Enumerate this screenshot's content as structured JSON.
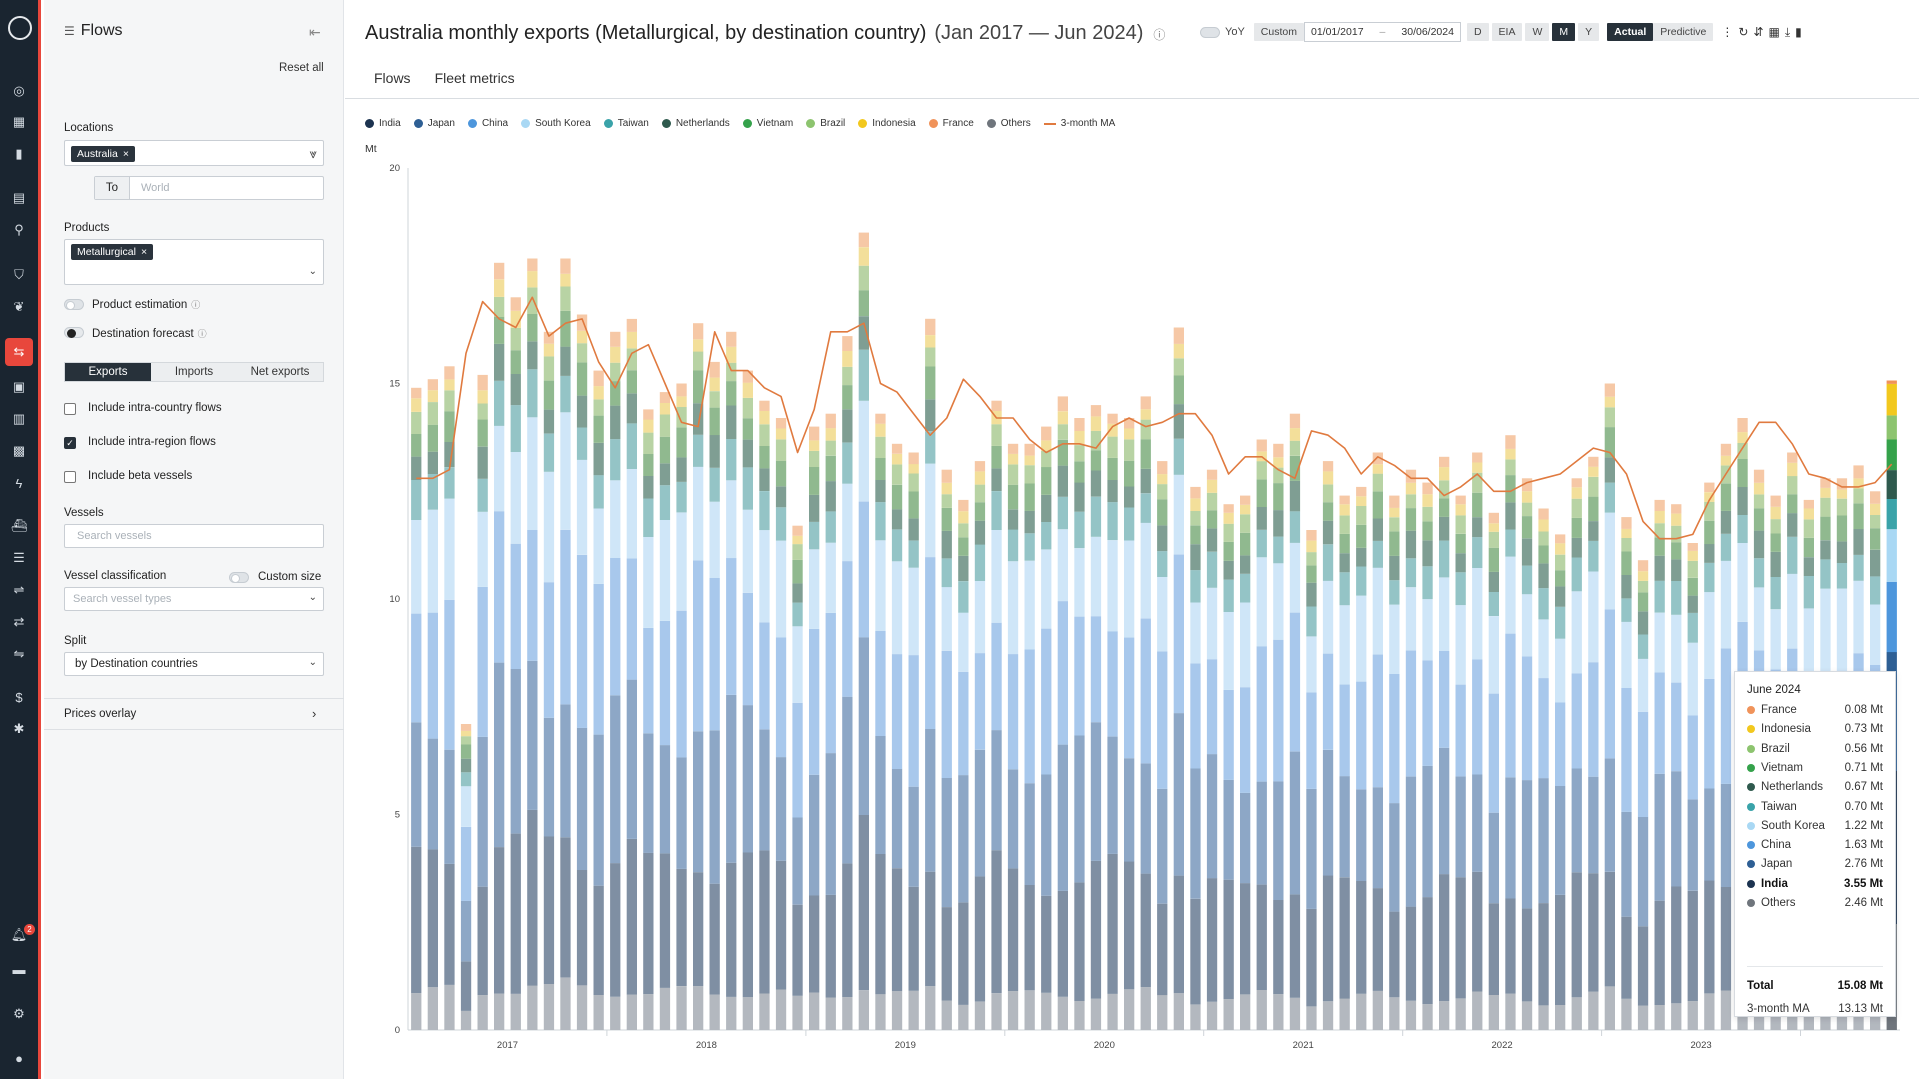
{
  "sidebar": {
    "title": "Flows",
    "reset_label": "Reset all",
    "locations_label": "Locations",
    "location_chip": "Australia",
    "to_label": "To",
    "to_placeholder": "World",
    "products_label": "Products",
    "product_chip": "Metallurgical",
    "product_estimation_label": "Product estimation",
    "destination_forecast_label": "Destination forecast",
    "flow_tabs": [
      "Exports",
      "Imports",
      "Net exports"
    ],
    "checkboxes": [
      {
        "label": "Include intra-country flows",
        "checked": false
      },
      {
        "label": "Include intra-region flows",
        "checked": true
      },
      {
        "label": "Include beta vessels",
        "checked": false
      }
    ],
    "vessels_label": "Vessels",
    "vessels_placeholder": "Search vessels",
    "vessel_class_label": "Vessel classification",
    "custom_size_label": "Custom size",
    "vessel_types_placeholder": "Search vessel types",
    "split_label": "Split",
    "split_value": "by Destination countries",
    "prices_overlay_label": "Prices overlay"
  },
  "header": {
    "title": "Australia monthly exports (Metallurgical, by destination country)",
    "range": "(Jan 2017 — Jun 2024)",
    "yoy_label": "YoY",
    "custom_label": "Custom",
    "date_from": "01/01/2017",
    "date_to": "30/06/2024",
    "date_sep": "–",
    "freq_buttons": [
      "D",
      "EIA",
      "W",
      "M",
      "Y"
    ],
    "active_freq": "M",
    "mode_buttons": [
      "Actual",
      "Predictive"
    ],
    "active_mode": "Actual",
    "tabs": [
      "Flows",
      "Fleet metrics"
    ]
  },
  "chart_data": {
    "type": "bar",
    "stacked": true,
    "unit_label": "Mt",
    "ylim": [
      0,
      20
    ],
    "yticks": [
      0,
      5,
      10,
      15,
      20
    ],
    "year_labels": [
      "2017",
      "2018",
      "2019",
      "2020",
      "2021",
      "2022",
      "2023"
    ],
    "series_order": [
      "Others",
      "India",
      "Japan",
      "China",
      "South Korea",
      "Taiwan",
      "Netherlands",
      "Vietnam",
      "Brazil",
      "Indonesia",
      "France"
    ],
    "series_colors": {
      "Others": "#b3b8bf",
      "India": "#7f8fa3",
      "Japan": "#8da7c6",
      "China": "#a8c8ec",
      "South Korea": "#cfe6f8",
      "Taiwan": "#94c4c6",
      "Netherlands": "#7f9e93",
      "Vietnam": "#90b98f",
      "Brazil": "#b8d3a4",
      "Indonesia": "#f3df9a",
      "France": "#f6c8a6"
    },
    "highlight_colors": {
      "Others": "#6f757c",
      "India": "#1c3350",
      "Japan": "#2e5f94",
      "China": "#4d96dc",
      "South Korea": "#a9d8f4",
      "Taiwan": "#3aa3a9",
      "Netherlands": "#2f5a4e",
      "Vietnam": "#35a24b",
      "Brazil": "#8dc46f",
      "Indonesia": "#f2c81e",
      "France": "#f0935a"
    },
    "months": [
      "2017-01",
      "2017-02",
      "2017-03",
      "2017-04",
      "2017-05",
      "2017-06",
      "2017-07",
      "2017-08",
      "2017-09",
      "2017-10",
      "2017-11",
      "2017-12",
      "2018-01",
      "2018-02",
      "2018-03",
      "2018-04",
      "2018-05",
      "2018-06",
      "2018-07",
      "2018-08",
      "2018-09",
      "2018-10",
      "2018-11",
      "2018-12",
      "2019-01",
      "2019-02",
      "2019-03",
      "2019-04",
      "2019-05",
      "2019-06",
      "2019-07",
      "2019-08",
      "2019-09",
      "2019-10",
      "2019-11",
      "2019-12",
      "2020-01",
      "2020-02",
      "2020-03",
      "2020-04",
      "2020-05",
      "2020-06",
      "2020-07",
      "2020-08",
      "2020-09",
      "2020-10",
      "2020-11",
      "2020-12",
      "2021-01",
      "2021-02",
      "2021-03",
      "2021-04",
      "2021-05",
      "2021-06",
      "2021-07",
      "2021-08",
      "2021-09",
      "2021-10",
      "2021-11",
      "2021-12",
      "2022-01",
      "2022-02",
      "2022-03",
      "2022-04",
      "2022-05",
      "2022-06",
      "2022-07",
      "2022-08",
      "2022-09",
      "2022-10",
      "2022-11",
      "2022-12",
      "2023-01",
      "2023-02",
      "2023-03",
      "2023-04",
      "2023-05",
      "2023-06",
      "2023-07",
      "2023-08",
      "2023-09",
      "2023-10",
      "2023-11",
      "2023-12",
      "2024-01",
      "2024-02",
      "2024-03",
      "2024-04",
      "2024-05",
      "2024-06"
    ],
    "totals": [
      14.9,
      15.1,
      15.4,
      7.1,
      15.2,
      17.8,
      17.0,
      17.9,
      16.2,
      17.9,
      16.6,
      15.3,
      16.2,
      16.5,
      14.4,
      14.8,
      15.0,
      16.4,
      15.5,
      16.2,
      15.3,
      14.6,
      14.2,
      11.7,
      14.0,
      14.3,
      16.1,
      18.5,
      14.3,
      13.6,
      13.4,
      16.5,
      13.0,
      12.3,
      13.2,
      14.6,
      13.6,
      13.6,
      14.0,
      14.7,
      14.2,
      14.5,
      14.3,
      14.2,
      14.7,
      13.2,
      16.3,
      12.6,
      13.0,
      12.2,
      12.4,
      13.7,
      13.6,
      14.3,
      11.6,
      13.2,
      12.4,
      12.6,
      13.4,
      12.4,
      13.0,
      12.7,
      13.3,
      12.4,
      13.4,
      12.0,
      13.8,
      12.8,
      12.1,
      11.5,
      12.8,
      13.3,
      15.0,
      11.9,
      10.9,
      12.3,
      12.2,
      11.3,
      12.7,
      13.6,
      14.2,
      13.0,
      12.4,
      13.4,
      12.3,
      12.8,
      12.8,
      13.1,
      12.5,
      15.08
    ],
    "ma3": [
      12.8,
      12.8,
      13.0,
      15.7,
      16.9,
      16.5,
      16.3,
      17.0,
      16.1,
      16.4,
      16.5,
      15.5,
      14.9,
      15.7,
      15.9,
      15.0,
      14.1,
      14.0,
      16.2,
      15.3,
      15.3,
      14.9,
      14.7,
      13.4,
      14.4,
      16.2,
      16.2,
      16.4,
      15.0,
      14.8,
      14.3,
      13.8,
      14.2,
      15.1,
      14.7,
      14.2,
      14.2,
      13.7,
      13.4,
      13.6,
      13.6,
      13.5,
      14.0,
      14.2,
      14.0,
      14.1,
      14.3,
      14.3,
      13.8,
      12.9,
      13.3,
      13.3,
      13.0,
      12.8,
      13.9,
      13.8,
      13.5,
      12.9,
      13.3,
      13.1,
      12.8,
      12.8,
      12.4,
      12.6,
      12.9,
      12.5,
      12.5,
      12.7,
      12.8,
      12.9,
      13.2,
      13.5,
      13.4,
      12.9,
      11.8,
      11.4,
      11.4,
      11.5,
      12.3,
      12.9,
      13.5,
      14.1,
      14.1,
      13.6,
      12.9,
      12.8,
      12.6,
      12.6,
      12.7,
      13.13
    ],
    "last_month_breakdown": {
      "Others": 2.46,
      "India": 3.55,
      "Japan": 2.76,
      "China": 1.63,
      "South Korea": 1.22,
      "Taiwan": 0.7,
      "Netherlands": 0.67,
      "Vietnam": 0.71,
      "Brazil": 0.56,
      "Indonesia": 0.73,
      "France": 0.08
    }
  },
  "legend": [
    {
      "label": "India",
      "color": "#1c3350"
    },
    {
      "label": "Japan",
      "color": "#2e5f94"
    },
    {
      "label": "China",
      "color": "#4d96dc"
    },
    {
      "label": "South Korea",
      "color": "#a9d8f4"
    },
    {
      "label": "Taiwan",
      "color": "#3aa3a9"
    },
    {
      "label": "Netherlands",
      "color": "#2f5a4e"
    },
    {
      "label": "Vietnam",
      "color": "#35a24b"
    },
    {
      "label": "Brazil",
      "color": "#8dc46f"
    },
    {
      "label": "Indonesia",
      "color": "#f2c81e"
    },
    {
      "label": "France",
      "color": "#f0935a"
    },
    {
      "label": "Others",
      "color": "#6f757c"
    },
    {
      "label": "3-month MA",
      "color": "#e07a3f",
      "line": true
    }
  ],
  "tooltip": {
    "title": "June 2024",
    "rows": [
      {
        "name": "France",
        "value": "0.08 Mt",
        "color": "#f0935a"
      },
      {
        "name": "Indonesia",
        "value": "0.73 Mt",
        "color": "#f2c81e"
      },
      {
        "name": "Brazil",
        "value": "0.56 Mt",
        "color": "#8dc46f"
      },
      {
        "name": "Vietnam",
        "value": "0.71 Mt",
        "color": "#35a24b"
      },
      {
        "name": "Netherlands",
        "value": "0.67 Mt",
        "color": "#2f5a4e"
      },
      {
        "name": "Taiwan",
        "value": "0.70 Mt",
        "color": "#3aa3a9"
      },
      {
        "name": "South Korea",
        "value": "1.22 Mt",
        "color": "#a9d8f4"
      },
      {
        "name": "China",
        "value": "1.63 Mt",
        "color": "#4d96dc"
      },
      {
        "name": "Japan",
        "value": "2.76 Mt",
        "color": "#2e5f94"
      },
      {
        "name": "India",
        "value": "3.55 Mt",
        "color": "#1c3350",
        "bold": true
      },
      {
        "name": "Others",
        "value": "2.46 Mt",
        "color": "#6f757c"
      }
    ],
    "total_label": "Total",
    "total_value": "15.08 Mt",
    "ma_label": "3-month MA",
    "ma_value": "13.13 Mt"
  }
}
